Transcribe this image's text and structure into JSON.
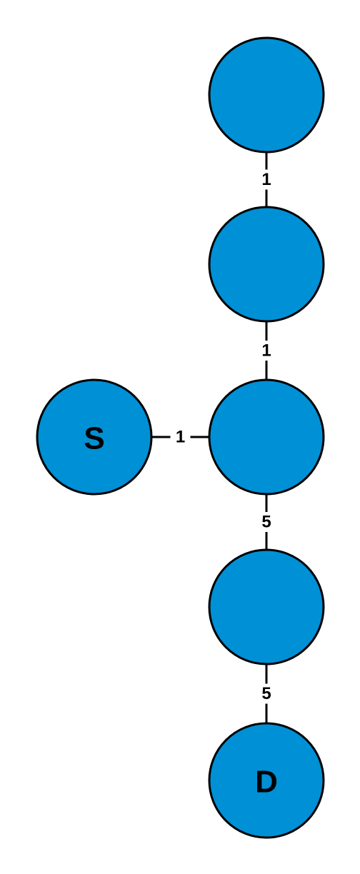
{
  "graph": {
    "node_color": "#0090d6",
    "stroke_color": "#000000",
    "nodes": [
      {
        "id": "n1",
        "label": ""
      },
      {
        "id": "n2",
        "label": ""
      },
      {
        "id": "n3",
        "label": ""
      },
      {
        "id": "s",
        "label": "S"
      },
      {
        "id": "n4",
        "label": ""
      },
      {
        "id": "d",
        "label": "D"
      }
    ],
    "edges": [
      {
        "from": "n1",
        "to": "n2",
        "weight": "1"
      },
      {
        "from": "n2",
        "to": "n3",
        "weight": "1"
      },
      {
        "from": "s",
        "to": "n3",
        "weight": "1"
      },
      {
        "from": "n3",
        "to": "n4",
        "weight": "5"
      },
      {
        "from": "n4",
        "to": "d",
        "weight": "5"
      }
    ]
  }
}
